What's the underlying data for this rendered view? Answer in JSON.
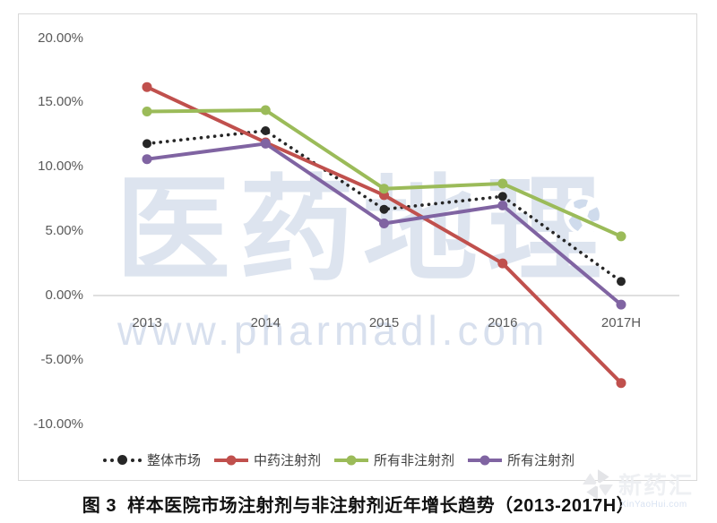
{
  "caption": "图 3  样本医院市场注射剂与非注射剂近年增长趋势（2013-2017H）",
  "watermarks": {
    "pharmadl_cn": "医药地理",
    "pharmadl_url": "www.pharmadl.com",
    "xinyaohui_cn": "新药汇",
    "xinyaohui_url": "XinYaoHui.com"
  },
  "chart_data": {
    "type": "line",
    "title": "",
    "xlabel": "",
    "ylabel": "",
    "categories": [
      "2013",
      "2014",
      "2015",
      "2016",
      "2017H"
    ],
    "series": [
      {
        "name": "整体市场",
        "color": "#262626",
        "style": "dotted",
        "values": [
          11.8,
          12.8,
          6.7,
          7.7,
          1.1
        ]
      },
      {
        "name": "中药注射剂",
        "color": "#c0504d",
        "style": "solid",
        "values": [
          16.2,
          11.9,
          7.8,
          2.5,
          -6.8
        ]
      },
      {
        "name": "所有非注射剂",
        "color": "#9bbb59",
        "style": "solid",
        "values": [
          14.3,
          14.4,
          8.3,
          8.7,
          4.6
        ]
      },
      {
        "name": "所有注射剂",
        "color": "#8064a2",
        "style": "solid",
        "values": [
          10.6,
          11.8,
          5.6,
          7.0,
          -0.7
        ]
      }
    ],
    "ylim": [
      -10,
      20
    ],
    "ytick_step": 5,
    "ytick_labels": [
      "20.00%",
      "15.00%",
      "10.00%",
      "5.00%",
      "0.00%",
      "-5.00%",
      "-10.00%"
    ],
    "grid": false,
    "axis_color": "#bfbfbf",
    "tick_text_color": "#595959",
    "legend_position": "bottom"
  }
}
